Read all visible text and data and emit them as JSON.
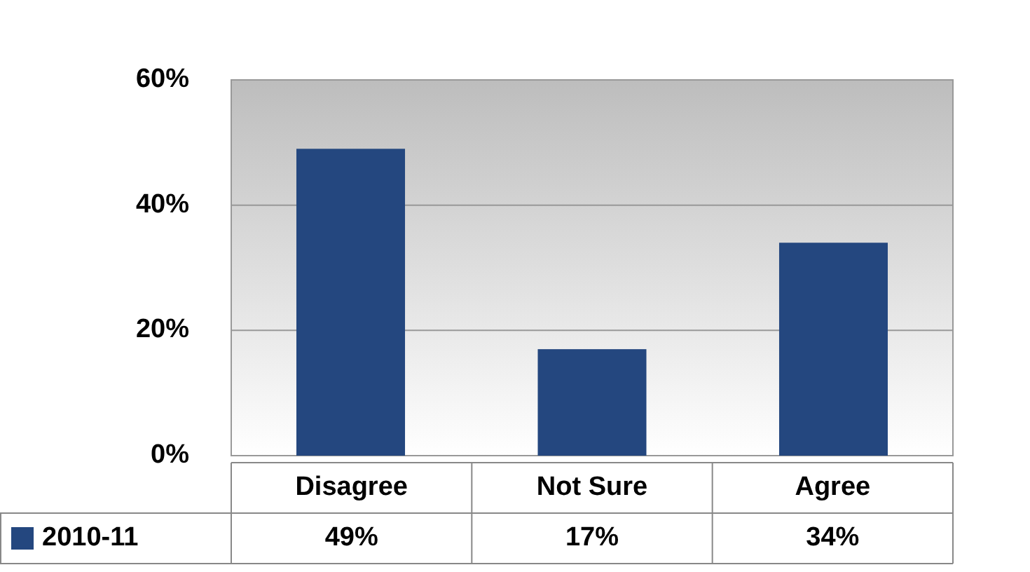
{
  "chart_data": {
    "type": "bar",
    "categories": [
      "Disagree",
      "Not Sure",
      "Agree"
    ],
    "series": [
      {
        "name": "2010-11",
        "color": "#24477f",
        "values": [
          49,
          17,
          34
        ],
        "value_labels": [
          "49%",
          "17%",
          "34%"
        ]
      }
    ],
    "ylim": [
      0,
      60
    ],
    "yticks": [
      {
        "value": 0,
        "label": "0%"
      },
      {
        "value": 20,
        "label": "20%"
      },
      {
        "value": 40,
        "label": "40%"
      },
      {
        "value": 60,
        "label": "60%"
      }
    ],
    "grid": "y",
    "legend": "bottom"
  }
}
